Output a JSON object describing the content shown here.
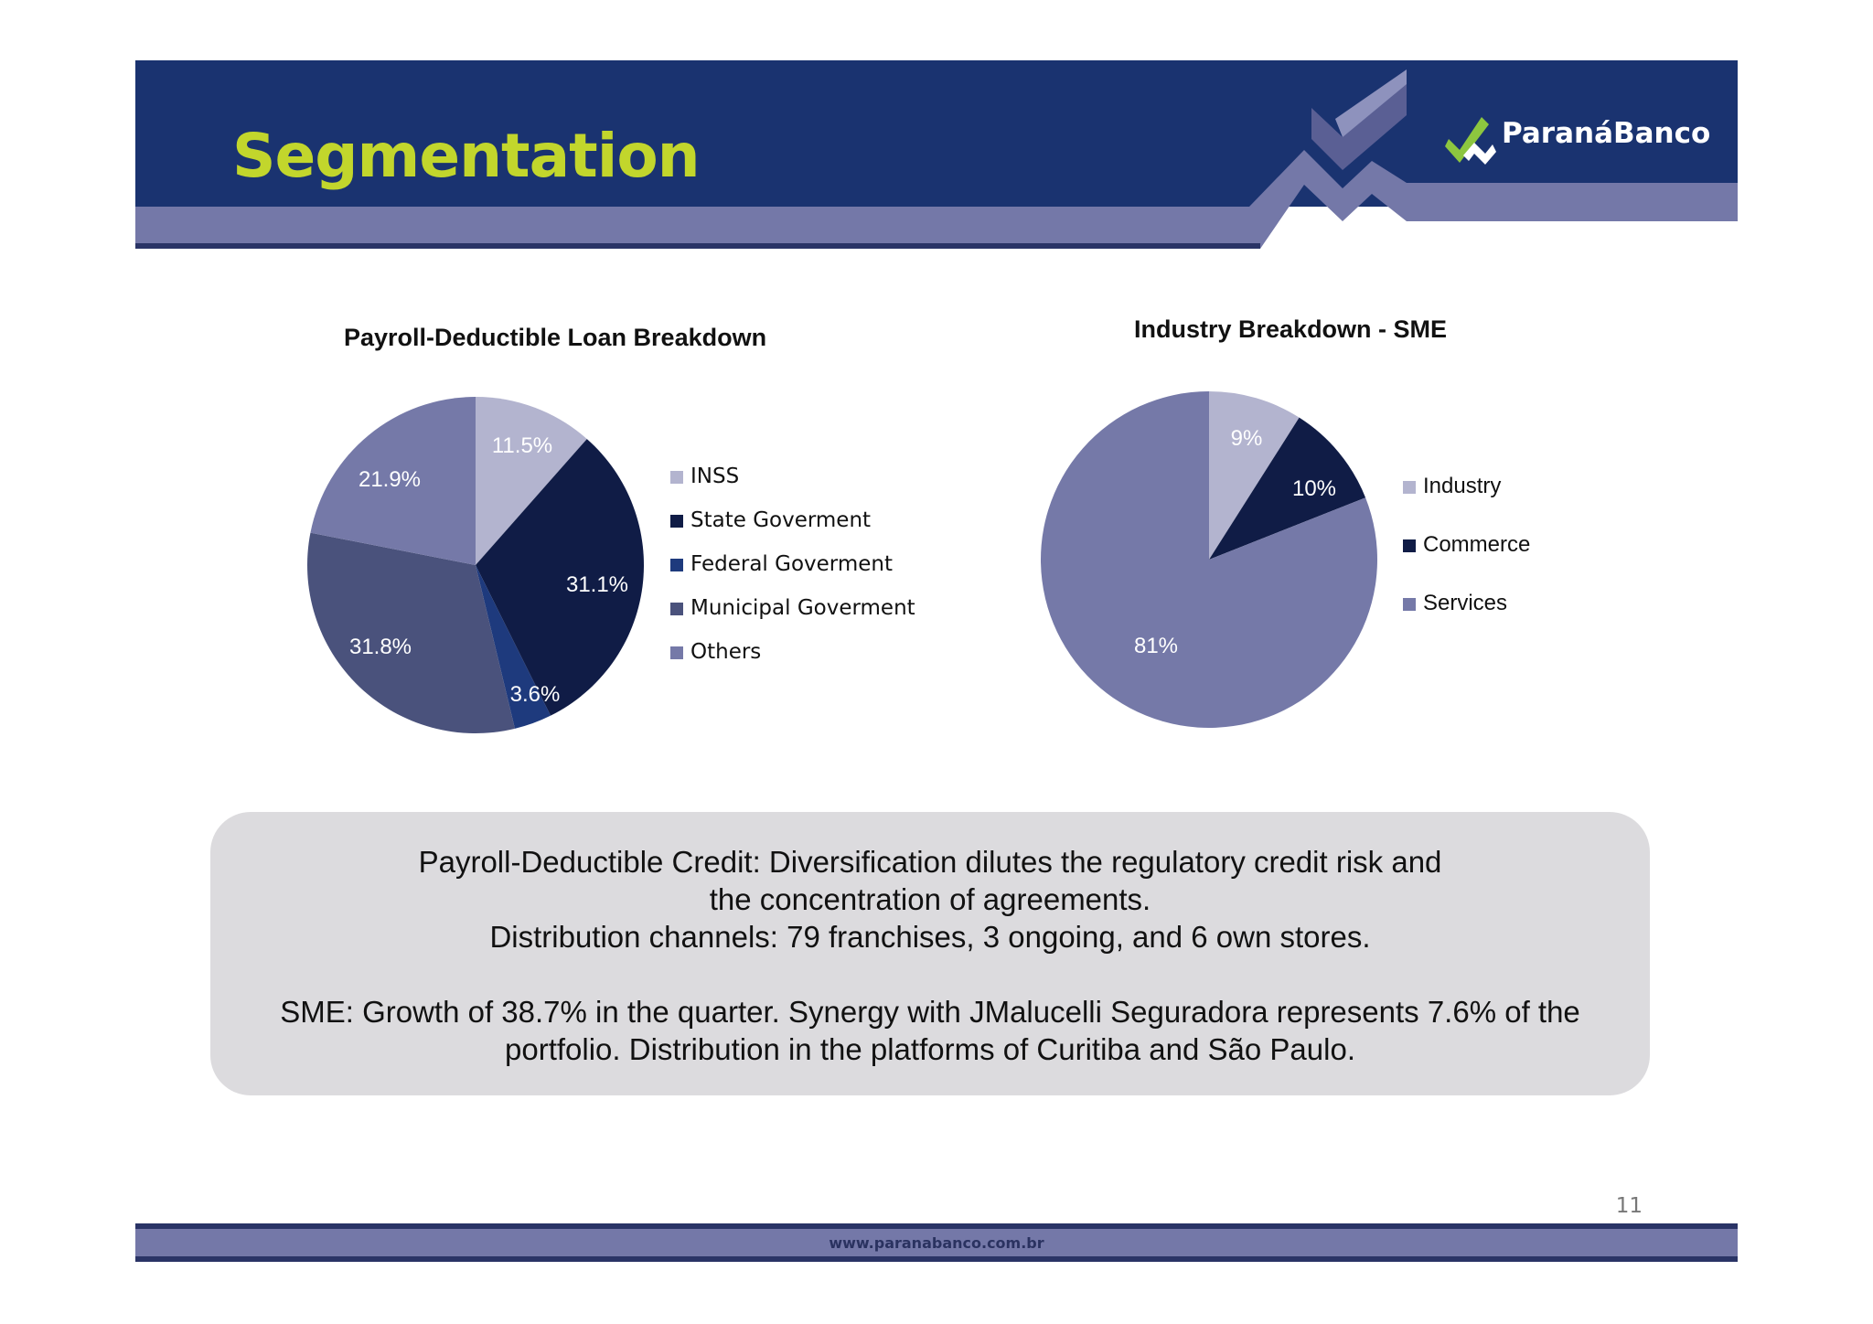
{
  "header": {
    "title": "Segmentation",
    "logo_text": "ParanáBanco",
    "colors": {
      "banner": "#1a3370",
      "band": "#7478a8",
      "title": "#c2d62c"
    }
  },
  "chart_data": [
    {
      "type": "pie",
      "title": "Payroll-Deductible Loan Breakdown",
      "categories": [
        "INSS",
        "State Goverment",
        "Federal Goverment",
        "Municipal Goverment",
        "Others"
      ],
      "values": [
        11.5,
        31.1,
        3.6,
        31.8,
        21.9
      ],
      "value_labels": [
        "11.5%",
        "31.1%",
        "3.6%",
        "31.8%",
        "21.9%"
      ],
      "colors": [
        "#b3b4cf",
        "#101c46",
        "#1e3a7d",
        "#4a527c",
        "#7579a8"
      ],
      "legend_position": "right"
    },
    {
      "type": "pie",
      "title": "Industry Breakdown - SME",
      "categories": [
        "Industry",
        "Commerce",
        "Services"
      ],
      "values": [
        9,
        10,
        81
      ],
      "value_labels": [
        "9%",
        "10%",
        "81%"
      ],
      "colors": [
        "#b3b4cf",
        "#101c46",
        "#7579a8"
      ],
      "legend_position": "right"
    }
  ],
  "note": {
    "para1": [
      "Payroll-Deductible Credit: Diversification dilutes the regulatory credit risk and",
      "the concentration of agreements.",
      "Distribution channels: 79 franchises, 3 ongoing, and 6 own stores."
    ],
    "para2": [
      "SME: Growth of 38.7% in the quarter. Synergy with JMalucelli Seguradora represents 7.6% of the",
      "portfolio. Distribution in the platforms of Curitiba and São Paulo."
    ]
  },
  "footer": {
    "page_number": "11",
    "url": "www.paranabanco.com.br"
  }
}
